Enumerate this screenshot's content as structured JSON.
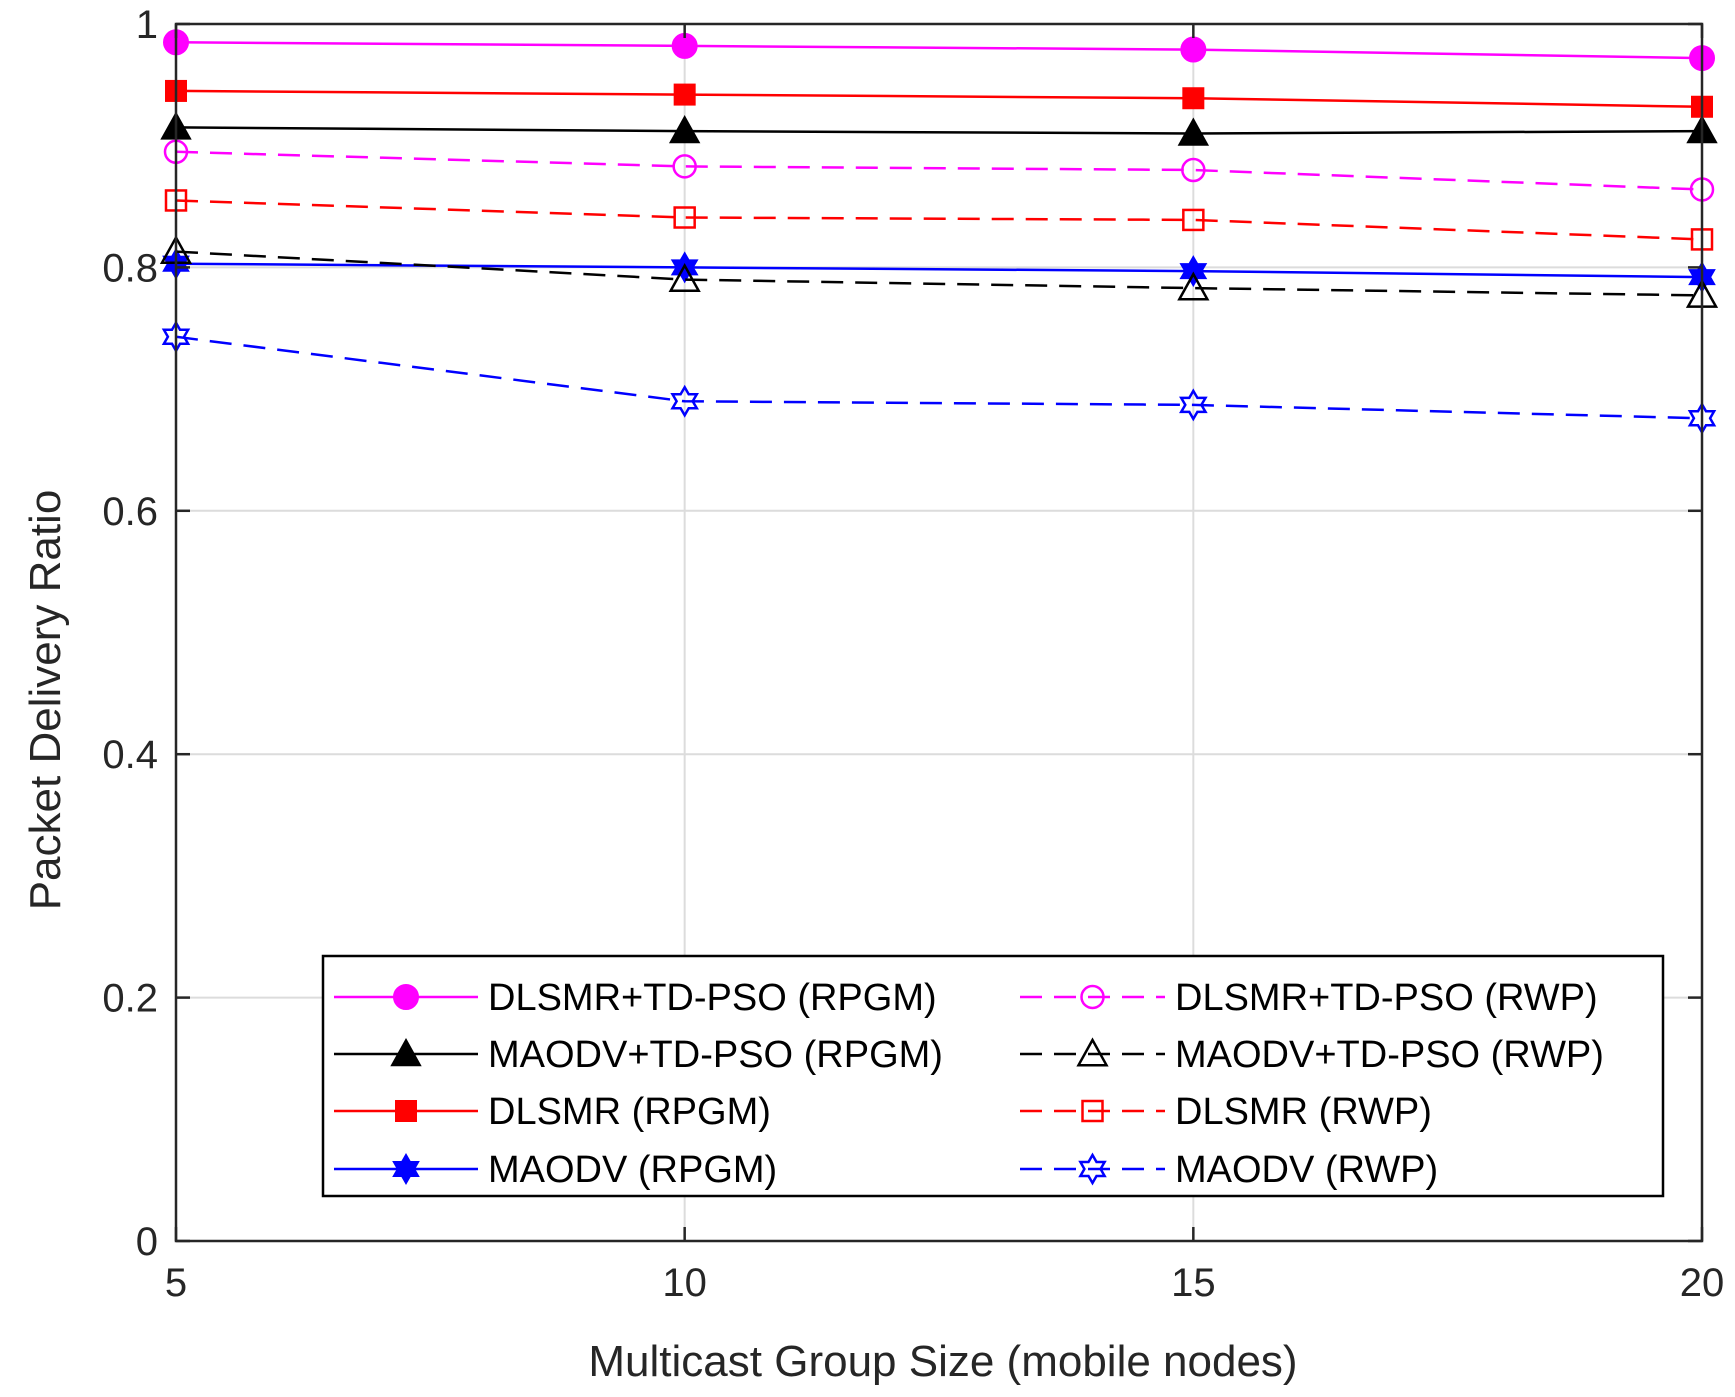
{
  "chart_data": {
    "type": "line",
    "title": "",
    "xlabel": "Multicast Group Size (mobile nodes)",
    "ylabel": "Packet Delivery Ratio",
    "x": [
      5,
      10,
      15,
      20
    ],
    "xlim": [
      5,
      20
    ],
    "ylim": [
      0,
      1
    ],
    "xticks": [
      5,
      10,
      15,
      20
    ],
    "yticks": [
      0,
      0.2,
      0.4,
      0.6,
      0.8,
      1
    ],
    "xtick_labels": [
      "5",
      "10",
      "15",
      "20"
    ],
    "ytick_labels": [
      "0",
      "0.2",
      "0.4",
      "0.6",
      "0.8",
      "1"
    ],
    "grid": true,
    "legend_position": "bottom-center",
    "series": [
      {
        "name": "DLSMR+TD-PSO (RPGM)",
        "values": [
          0.985,
          0.982,
          0.979,
          0.972
        ],
        "color": "#ff00ff",
        "dash": "solid",
        "marker": "circle",
        "filled": true
      },
      {
        "name": "MAODV+TD-PSO (RPGM)",
        "values": [
          0.915,
          0.912,
          0.91,
          0.912
        ],
        "color": "#000000",
        "dash": "solid",
        "marker": "triangle",
        "filled": true
      },
      {
        "name": "DLSMR (RPGM)",
        "values": [
          0.945,
          0.942,
          0.939,
          0.932
        ],
        "color": "#ff0000",
        "dash": "solid",
        "marker": "square",
        "filled": true
      },
      {
        "name": "MAODV (RPGM)",
        "values": [
          0.803,
          0.8,
          0.797,
          0.792
        ],
        "color": "#0000ff",
        "dash": "solid",
        "marker": "hexagram",
        "filled": true
      },
      {
        "name": "DLSMR+TD-PSO (RWP)",
        "values": [
          0.895,
          0.883,
          0.88,
          0.864
        ],
        "color": "#ff00ff",
        "dash": "dashed",
        "marker": "circle",
        "filled": false
      },
      {
        "name": "MAODV+TD-PSO (RWP)",
        "values": [
          0.813,
          0.79,
          0.783,
          0.777
        ],
        "color": "#000000",
        "dash": "dashed",
        "marker": "triangle",
        "filled": false
      },
      {
        "name": "DLSMR (RWP)",
        "values": [
          0.855,
          0.841,
          0.839,
          0.823
        ],
        "color": "#ff0000",
        "dash": "dashed",
        "marker": "square",
        "filled": false
      },
      {
        "name": "MAODV (RWP)",
        "values": [
          0.743,
          0.69,
          0.687,
          0.676
        ],
        "color": "#0000ff",
        "dash": "dashed",
        "marker": "hexagram",
        "filled": false
      }
    ]
  }
}
